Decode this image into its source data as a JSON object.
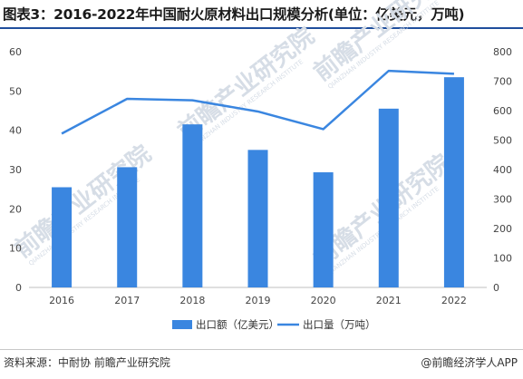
{
  "header": {
    "title": "图表3：2016-2022年中国耐火原材料出口规模分析(单位：亿美元，万吨)"
  },
  "footer": {
    "source": "资料来源：中耐协 前瞻产业研究院",
    "brand": "@前瞻经济学人APP"
  },
  "watermark": {
    "text": "前瞻产业研究院",
    "subtext": "QIANZHAN INDUSTRY RESEARCH INSTITUTE"
  },
  "colors": {
    "bar": "#3a86e0",
    "line": "#3a86e0",
    "axis": "#bfbfbf"
  },
  "chart_data": {
    "type": "bar",
    "categories": [
      "2016",
      "2017",
      "2018",
      "2019",
      "2020",
      "2021",
      "2022"
    ],
    "series": [
      {
        "name": "出口额（亿美元）",
        "type": "bar",
        "axis": "left",
        "values": [
          25.5,
          30.6,
          41.5,
          35.0,
          29.3,
          45.5,
          53.5
        ]
      },
      {
        "name": "出口量（万吨）",
        "type": "line",
        "axis": "right",
        "values": [
          522,
          640,
          635,
          597,
          537,
          735,
          725
        ]
      }
    ],
    "ylim_left": [
      0,
      60
    ],
    "yticks_left": [
      "0",
      "10",
      "20",
      "30",
      "40",
      "50",
      "60"
    ],
    "ylim_right": [
      0,
      800
    ],
    "yticks_right": [
      "0",
      "100",
      "200",
      "300",
      "400",
      "500",
      "600",
      "700",
      "800"
    ],
    "legend": {
      "position": "bottom"
    },
    "grid": false
  }
}
